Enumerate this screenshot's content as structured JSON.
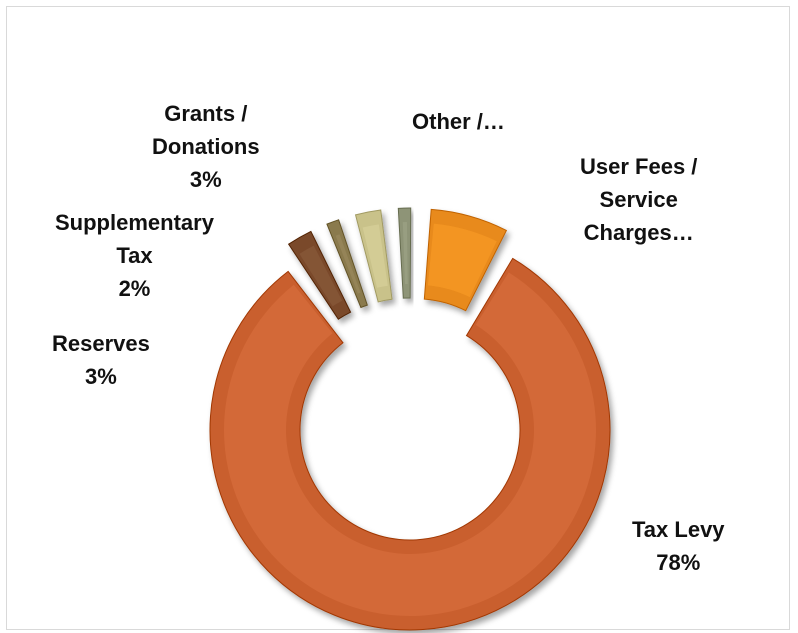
{
  "chart_data": {
    "type": "pie",
    "subtype": "exploded-doughnut-3d",
    "title": "",
    "slices": [
      {
        "label": "Tax Levy",
        "value_label": "78%",
        "value": 78,
        "color": "#C95F2E"
      },
      {
        "label": "Reserves",
        "value_label": "3%",
        "value": 3,
        "color": "#7A4A2C"
      },
      {
        "label": "Supplementary Tax",
        "value_label": "2%",
        "value": 2,
        "color": "#8A7A4E"
      },
      {
        "label": "Grants / Donations",
        "value_label": "3%",
        "value": 3,
        "color": "#C9C28A"
      },
      {
        "label": "Other /…",
        "value_label": "",
        "value": 2,
        "color": "#8E9477"
      },
      {
        "label": "User Fees / Service Charges…",
        "value_label": "",
        "value": 7,
        "color": "#E88A1A"
      }
    ],
    "legend": "none",
    "grid": false
  }
}
